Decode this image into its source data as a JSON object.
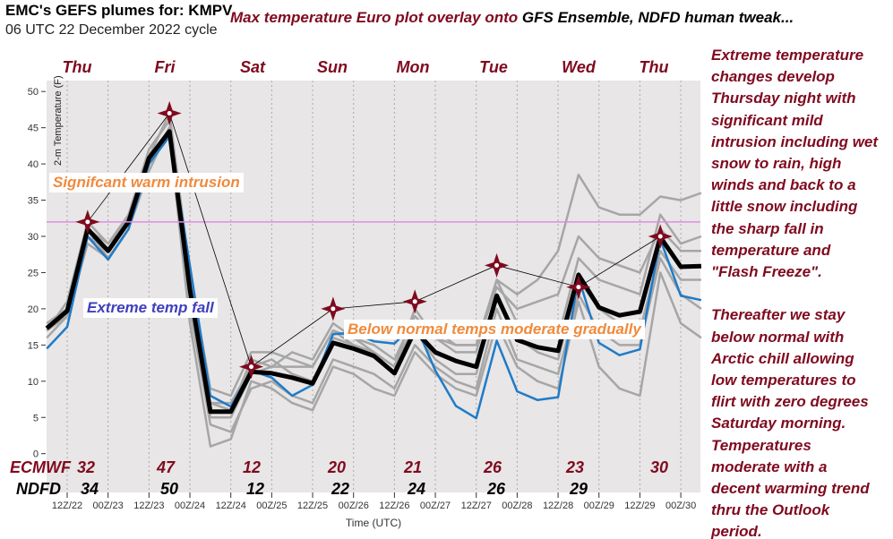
{
  "header": {
    "title": "EMC's GEFS plumes for: KMPV",
    "cycle": "06 UTC 22 December 2022 cycle",
    "headline_red": "Max temperature Euro plot overlay onto",
    "headline_black": "GFS Ensemble, NDFD human tweak..."
  },
  "side_text": {
    "lines": [
      "Extreme temperature",
      "changes develop",
      "Thursday night with",
      "significant mild",
      "intrusion including wet",
      "snow to rain, high",
      "winds and back to a",
      "little snow including",
      "the sharp fall in",
      "temperature and",
      "\"Flash Freeze\".",
      "",
      "Thereafter we stay",
      "below normal with",
      "Arctic chill allowing",
      "low temperatures to",
      "flirt with zero degrees",
      "Saturday morning.",
      "Temperatures",
      "moderate with a",
      "decent  warming trend",
      "thru the Outlook",
      "period."
    ]
  },
  "annotations": {
    "warm": "Signifcant warm intrusion",
    "fall": "Extreme temp fall",
    "below": "Below normal temps moderate gradually"
  },
  "days": [
    "Thu",
    "Fri",
    "Sat",
    "Sun",
    "Mon",
    "Tue",
    "Wed",
    "Thu"
  ],
  "table": {
    "ecmwf_label": "ECMWF",
    "ndfd_label": "NDFD",
    "ecmwf": [
      "32",
      "47",
      "12",
      "20",
      "21",
      "26",
      "23",
      "30"
    ],
    "ndfd": [
      "34",
      "50",
      "12",
      "22",
      "24",
      "26",
      "29"
    ]
  },
  "colors": {
    "ecmwf_marker": "#7f0a1f",
    "mean": "#000000",
    "blue_member": "#1f7bc8",
    "members": "#a6a6a6",
    "freezing_line": "#e08ce0",
    "background": "#e8e6e6",
    "annotation_orange": "#f08a3c",
    "annotation_blue": "#3f3fbf"
  },
  "chart_data": {
    "type": "line",
    "xlabel": "Time (UTC)",
    "ylabel": "2-m Temperature (F)",
    "ylim": [
      0,
      50
    ],
    "yticks": [
      "0",
      "5",
      "10",
      "15",
      "20",
      "25",
      "30",
      "35",
      "40",
      "45",
      "50"
    ],
    "xticks": [
      "12Z/22",
      "00Z/23",
      "12Z/23",
      "00Z/24",
      "12Z/24",
      "00Z/25",
      "12Z/25",
      "00Z/26",
      "12Z/26",
      "00Z/27",
      "12Z/27",
      "00Z/28",
      "12Z/28",
      "00Z/29",
      "12Z/29",
      "00Z/30"
    ],
    "grid": "vertical dotted",
    "reference_line": 32,
    "x": [
      "06Z/22",
      "12Z/22",
      "18Z/22",
      "00Z/23",
      "06Z/23",
      "12Z/23",
      "18Z/23",
      "00Z/24",
      "06Z/24",
      "12Z/24",
      "18Z/24",
      "00Z/25",
      "06Z/25",
      "12Z/25",
      "18Z/25",
      "00Z/26",
      "06Z/26",
      "12Z/26",
      "18Z/26",
      "00Z/27",
      "06Z/27",
      "12Z/27",
      "18Z/27",
      "00Z/28",
      "06Z/28",
      "12Z/28",
      "18Z/28",
      "00Z/29",
      "06Z/29",
      "12Z/29",
      "18Z/29",
      "00Z/30",
      "06Z/30"
    ],
    "mean": [
      17.3,
      19.7,
      31,
      28,
      32,
      40.8,
      44.5,
      22.7,
      5.8,
      5.8,
      11.3,
      11.1,
      10.5,
      9.7,
      15.3,
      14.5,
      13.5,
      11.1,
      17,
      14,
      12.8,
      12,
      21.8,
      15.7,
      14.7,
      14.2,
      24.7,
      20.2,
      19.1,
      19.6,
      29.9,
      25.8,
      25.9
    ],
    "blue": [
      14.5,
      17.5,
      30,
      26.8,
      31,
      40,
      43.8,
      26,
      8,
      6.5,
      11.5,
      10.5,
      8,
      9.5,
      16.5,
      16.7,
      15.5,
      15.2,
      18,
      11.5,
      6.6,
      4.9,
      15.6,
      8.6,
      7.4,
      7.8,
      24.3,
      15.3,
      13.6,
      14.4,
      29.6,
      21.8,
      21.2
    ],
    "members": [
      [
        18,
        20,
        30,
        28,
        33,
        42,
        46,
        24,
        7,
        6,
        13,
        12,
        12,
        12,
        17,
        16,
        15,
        13,
        19,
        16,
        15,
        15,
        24,
        22,
        24,
        28,
        38.5,
        34,
        33,
        33,
        35.5,
        35,
        36
      ],
      [
        16,
        19,
        29,
        27,
        31,
        40,
        45,
        20,
        4,
        3,
        9,
        10,
        8,
        7,
        13,
        12,
        11,
        9,
        15,
        12,
        10,
        9,
        20,
        13,
        12,
        11,
        22,
        17,
        15,
        15,
        27,
        22,
        20
      ],
      [
        17,
        21,
        32,
        29,
        33,
        41,
        47,
        25,
        9,
        8,
        14,
        14,
        13,
        12,
        17,
        15,
        14,
        12,
        20,
        16,
        14,
        14,
        24,
        18,
        17,
        16,
        27,
        24,
        23,
        22,
        33,
        29,
        30
      ],
      [
        18,
        20,
        31,
        29,
        32,
        41,
        44,
        18,
        1,
        2,
        10,
        9,
        7,
        6,
        12,
        11,
        9,
        8,
        14,
        11,
        9,
        8,
        18,
        12,
        10,
        9,
        21,
        12,
        9,
        8,
        25,
        18,
        16
      ],
      [
        17,
        20,
        30,
        28,
        32,
        40,
        45,
        22,
        7,
        7,
        12,
        13,
        11,
        10,
        16,
        15,
        14,
        12,
        18,
        17,
        15,
        15,
        23,
        20,
        21,
        22,
        30,
        27,
        26,
        25,
        31,
        28,
        28
      ],
      [
        17,
        19,
        31,
        27,
        31,
        39,
        45,
        21,
        5,
        5,
        11,
        12,
        14,
        13,
        18,
        16,
        14,
        11,
        17,
        13,
        11,
        11,
        22,
        16,
        14,
        13,
        24,
        20,
        18,
        17,
        28,
        24,
        24
      ]
    ],
    "ecmwf_points": {
      "x": [
        "18Z/22",
        "18Z/23",
        "18Z/24",
        "18Z/25",
        "18Z/26",
        "18Z/27",
        "18Z/28",
        "18Z/29"
      ],
      "y": [
        32,
        47,
        12,
        20,
        21,
        26,
        23,
        30
      ]
    }
  }
}
